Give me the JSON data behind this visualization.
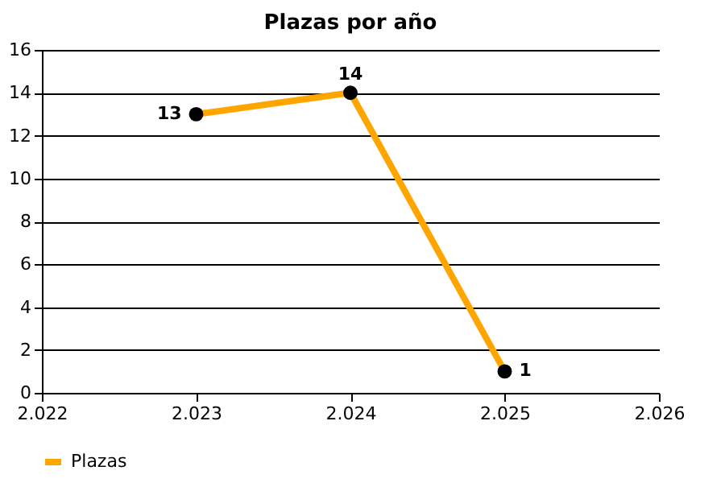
{
  "chart_data": {
    "type": "line",
    "title": "Plazas por año",
    "x": [
      2023,
      2024,
      2025
    ],
    "series": [
      {
        "name": "Plazas",
        "color": "#ffa500",
        "values": [
          13,
          14,
          1
        ]
      }
    ],
    "xlim": [
      2022,
      2026
    ],
    "xticks": [
      {
        "value": 2022,
        "label": "2.022"
      },
      {
        "value": 2023,
        "label": "2.023"
      },
      {
        "value": 2024,
        "label": "2.024"
      },
      {
        "value": 2025,
        "label": "2.025"
      },
      {
        "value": 2026,
        "label": "2.026"
      }
    ],
    "ylim": [
      0,
      16
    ],
    "yticks": [
      0,
      2,
      4,
      6,
      8,
      10,
      12,
      14,
      16
    ],
    "grid": "y",
    "legend": "bottom left",
    "marker": "circle",
    "line_style": "solid",
    "data_labels": true
  }
}
